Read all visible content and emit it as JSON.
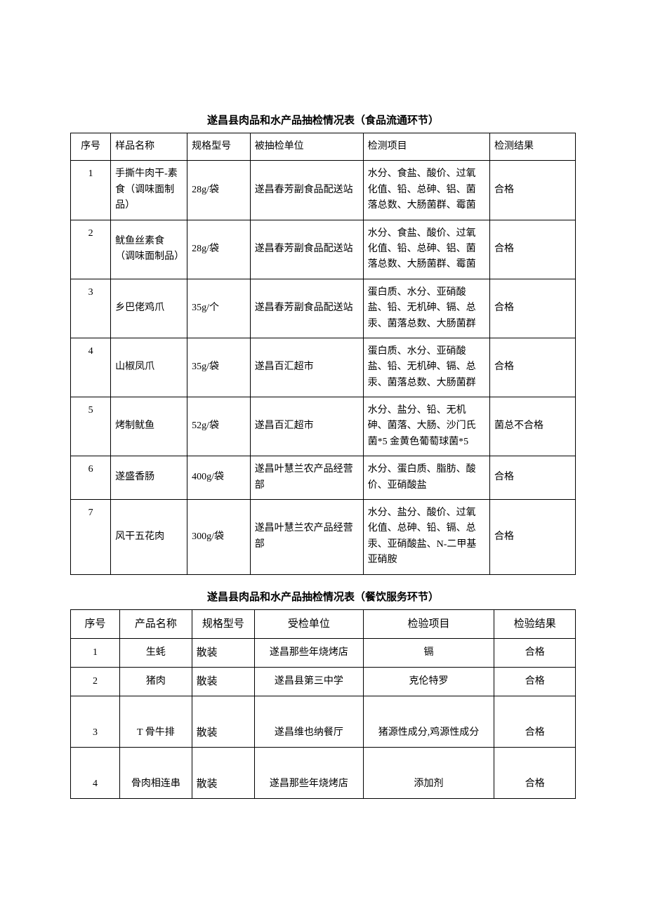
{
  "table1": {
    "title": "遂昌县肉品和水产品抽检情况表（食品流通环节）",
    "columns": [
      "序号",
      "样品名称",
      "规格型号",
      "被抽检单位",
      "检测项目",
      "检测结果"
    ],
    "rows": [
      {
        "seq": "1",
        "name": "手撕牛肉干-素食（调味面制品）",
        "spec": "28g/袋",
        "unit": "遂昌春芳副食品配送站",
        "items": "水分、食盐、酸价、过氧化值、铅、总砷、铝、菌落总数、大肠菌群、霉菌",
        "result": "合格"
      },
      {
        "seq": "2",
        "name": "鱿鱼丝素食（调味面制品）",
        "spec": "28g/袋",
        "unit": "遂昌春芳副食品配送站",
        "items": "水分、食盐、酸价、过氧化值、铅、总砷、铝、菌落总数、大肠菌群、霉菌",
        "result": "合格"
      },
      {
        "seq": "3",
        "name": "乡巴佬鸡爪",
        "spec": "35g/个",
        "unit": "遂昌春芳副食品配送站",
        "items": "蛋白质、水分、亚硝酸盐、铅、无机砷、镉、总汞、菌落总数、大肠菌群",
        "result": "合格"
      },
      {
        "seq": "4",
        "name": "山椒凤爪",
        "spec": "35g/袋",
        "unit": "遂昌百汇超市",
        "items": "蛋白质、水分、亚硝酸盐、铅、无机砷、镉、总汞、菌落总数、大肠菌群",
        "result": "合格"
      },
      {
        "seq": "5",
        "name": "烤制鱿鱼",
        "spec": "52g/袋",
        "unit": "遂昌百汇超市",
        "items": "水分、盐分、铅、无机砷、菌落、大肠、沙门氏菌*5 金黄色葡萄球菌*5",
        "result": "菌总不合格"
      },
      {
        "seq": "6",
        "name": "遂盛香肠",
        "spec": "400g/袋",
        "unit": "遂昌叶慧兰农产品经营部",
        "items": "水分、蛋白质、脂肪、酸价、亚硝酸盐",
        "result": "合格"
      },
      {
        "seq": "7",
        "name": "风干五花肉",
        "spec": "300g/袋",
        "unit": "遂昌叶慧兰农产品经营部",
        "items": "水分、盐分、酸价、过氧化值、总砷、铅、镉、总汞、亚硝酸盐、N-二甲基亚硝胺",
        "result": "合格"
      }
    ]
  },
  "table2": {
    "title": "遂昌县肉品和水产品抽检情况表（餐饮服务环节）",
    "columns": [
      "序号",
      "产品名称",
      "规格型号",
      "受检单位",
      "检验项目",
      "检验结果"
    ],
    "rows": [
      {
        "seq": "1",
        "name": "生蚝",
        "spec": "散装",
        "unit": "遂昌那些年烧烤店",
        "items": "镉",
        "result": "合格",
        "tall": false
      },
      {
        "seq": "2",
        "name": "猪肉",
        "spec": "散装",
        "unit": "遂昌县第三中学",
        "items": "克伦特罗",
        "result": "合格",
        "tall": false
      },
      {
        "seq": "3",
        "name": "T 骨牛排",
        "spec": "散装",
        "unit": "遂昌维也纳餐厅",
        "items": "猪源性成分,鸡源性成分",
        "result": "合格",
        "tall": true
      },
      {
        "seq": "4",
        "name": "骨肉相连串",
        "spec": "散装",
        "unit": "遂昌那些年烧烤店",
        "items": "添加剂",
        "result": "合格",
        "tall": true
      }
    ]
  },
  "style": {
    "border_color": "#000000",
    "background": "#ffffff",
    "font_family": "SimSun",
    "title_fontsize": 15,
    "body_fontsize": 14
  }
}
